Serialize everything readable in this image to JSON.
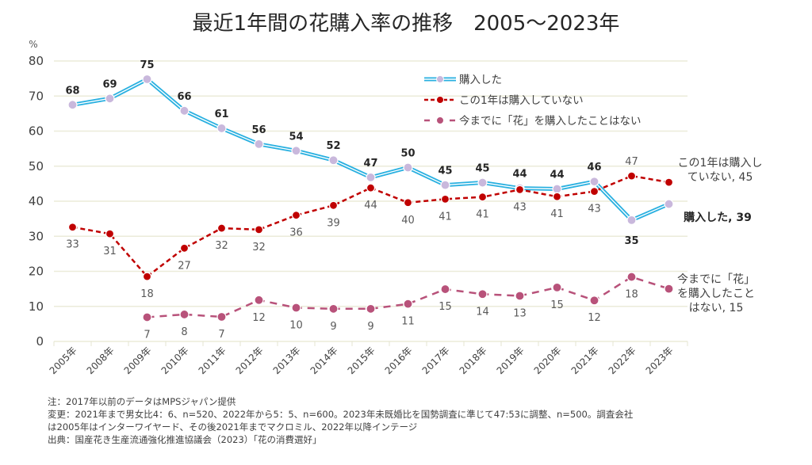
{
  "chart_data": {
    "type": "line",
    "title": "最近1年間の花購入率の推移　2005～2023年",
    "ylabel": "%",
    "xlabel": "",
    "ylim": [
      0,
      80
    ],
    "yticks": [
      0,
      10,
      20,
      30,
      40,
      50,
      60,
      70,
      80
    ],
    "grid": true,
    "legend_position": "top-right",
    "categories": [
      "2005年",
      "2008年",
      "2009年",
      "2010年",
      "2011年",
      "2012年",
      "2013年",
      "2014年",
      "2015年",
      "2016年",
      "2017年",
      "2018年",
      "2019年",
      "2020年",
      "2021年",
      "2022年",
      "2023年"
    ],
    "series": [
      {
        "name": "購入した",
        "color": "#29b0e0",
        "marker_color": "#c9b8dc",
        "style": "double-solid",
        "values": [
          68,
          69,
          75,
          66,
          61,
          56,
          54,
          52,
          47,
          50,
          45,
          45,
          44,
          44,
          46,
          35,
          39
        ],
        "plot_values": [
          67.5,
          69.3,
          74.8,
          65.8,
          60.8,
          56.3,
          54.4,
          51.7,
          46.8,
          49.6,
          44.6,
          45.3,
          43.7,
          43.5,
          45.6,
          34.6,
          39.2
        ],
        "labels": [
          "68",
          "69",
          "75",
          "66",
          "61",
          "56",
          "54",
          "52",
          "47",
          "50",
          "45",
          "45",
          "44",
          "44",
          "46",
          "35",
          ""
        ],
        "label_position": "above",
        "end_annotation": "購入した, 39"
      },
      {
        "name": "この1年は購入していない",
        "color": "#c00000",
        "style": "dashed",
        "values": [
          33,
          31,
          18,
          27,
          32,
          32,
          36,
          39,
          44,
          40,
          41,
          41,
          43,
          41,
          43,
          47,
          45
        ],
        "plot_values": [
          32.6,
          30.7,
          18.5,
          26.6,
          32.3,
          31.9,
          36.0,
          38.8,
          43.8,
          39.6,
          40.6,
          41.2,
          43.3,
          41.3,
          42.8,
          47.2,
          45.4
        ],
        "labels": [
          "33",
          "31",
          "18",
          "27",
          "32",
          "32",
          "36",
          "39",
          "44",
          "40",
          "41",
          "41",
          "43",
          "41",
          "43",
          "47",
          ""
        ],
        "label_position": "below",
        "end_annotation": "この1年は購入し\nていない, 45"
      },
      {
        "name": "今までに「花」を購入したことはない",
        "color": "#b8527a",
        "style": "long-dash",
        "values": [
          null,
          null,
          7,
          8,
          7,
          12,
          10,
          9,
          9,
          11,
          15,
          14,
          13,
          15,
          12,
          18,
          15
        ],
        "plot_values": [
          null,
          null,
          6.9,
          7.7,
          7.0,
          11.8,
          9.6,
          9.3,
          9.3,
          10.7,
          14.9,
          13.5,
          13.0,
          15.4,
          11.7,
          18.4,
          15.0
        ],
        "labels": [
          "",
          "",
          "7",
          "8",
          "7",
          "12",
          "10",
          "9",
          "9",
          "11",
          "15",
          "14",
          "13",
          "15",
          "12",
          "18",
          ""
        ],
        "label_position": "below",
        "end_annotation": "今までに「花」\nを購入したこと\nはない, 15"
      }
    ]
  },
  "notes": [
    "注：2017年以前のデータはMPSジャパン提供",
    "変更：2021年まで男女比4：6、n=520、2022年から5：5、n=600。2023年未既婚比を国勢調査に準じて47:53に調整、n=500。調査会社",
    "は2005年はインターワイヤード、その後2021年までマクロミル、2022年以降インテージ",
    "出典：国産花き生産流通強化推進協議会（2023）「花の消費選好」"
  ]
}
